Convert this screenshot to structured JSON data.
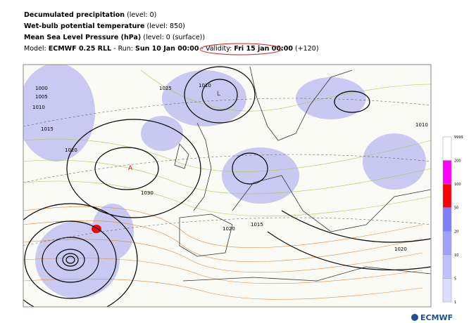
{
  "header": {
    "lines": [
      {
        "bold": "Decumulated precipitation",
        "rest": " (level: 0)"
      },
      {
        "bold": "Wet-bulb potential temperature",
        "rest": " (level: 850)"
      },
      {
        "bold": "Mean Sea Level Pressure (hPa)",
        "rest": " (level: 0 (surface))"
      }
    ],
    "model": {
      "prefix": "Model: ",
      "model": "ECMWF 0.25 RLL",
      "run_prefix": " - Run: ",
      "run": "Sun 10 Jan 00:00",
      "validity_prefix": " - Validity: ",
      "validity": "Fri 15 jan 00:00",
      "step": " (+120)"
    }
  },
  "map": {
    "labels": [
      "1000",
      "1005",
      "1010",
      "1015",
      "1020",
      "1025",
      "1030",
      "1010",
      "L",
      "A",
      "1015",
      "1020",
      "1020",
      "1010"
    ]
  },
  "colorbar": {
    "labels": [
      "9999",
      "200",
      "100",
      "50",
      "20",
      "10",
      "5",
      "1"
    ],
    "colors": [
      "#ffffff",
      "#ff00ff",
      "#ff0000",
      "#7f7fff",
      "#a0a0ff",
      "#c0c0ff",
      "#dcdcff"
    ]
  },
  "footer": {
    "logo": "ECMWF"
  }
}
